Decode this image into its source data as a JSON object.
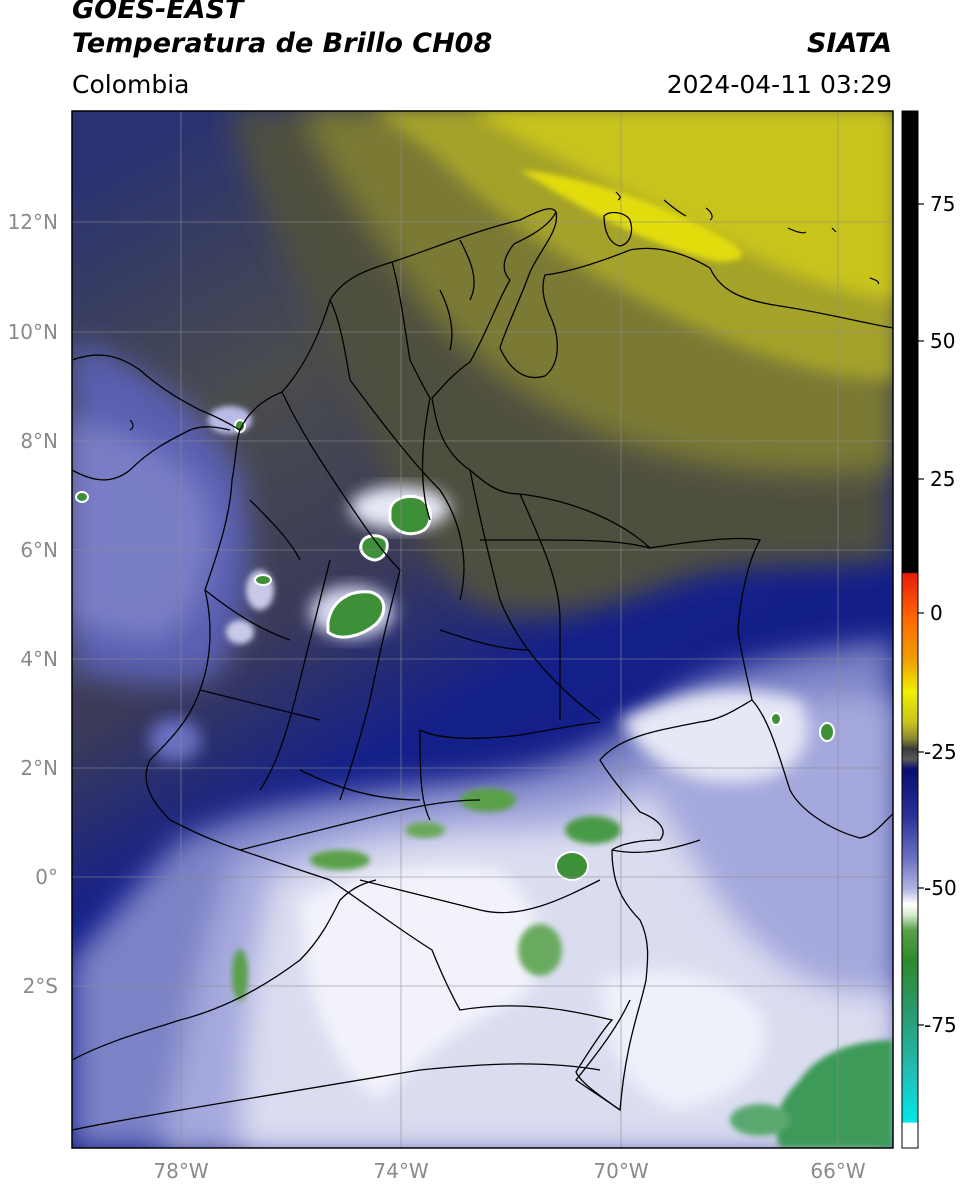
{
  "header": {
    "satellite": "GOES-EAST",
    "product": "Temperatura de Brillo CH08",
    "region": "Colombia",
    "agency": "SIATA",
    "datetime": "2024-04-11 03:29"
  },
  "map": {
    "lon_ticks": [
      "78°W",
      "74°W",
      "70°W",
      "66°W"
    ],
    "lat_ticks": [
      "12°N",
      "10°N",
      "8°N",
      "6°N",
      "4°N",
      "2°N",
      "0°",
      "2°S"
    ],
    "colors": {
      "yellow": "#c8c41e",
      "olive": "#5e5e34",
      "navy": "#101a86",
      "lavender": "#8a90cc",
      "white": "#eceef8",
      "green": "#3d8f38"
    }
  },
  "colorbar": {
    "ticks": [
      "75",
      "50",
      "25",
      "0",
      "-25",
      "-50",
      "-75"
    ]
  }
}
